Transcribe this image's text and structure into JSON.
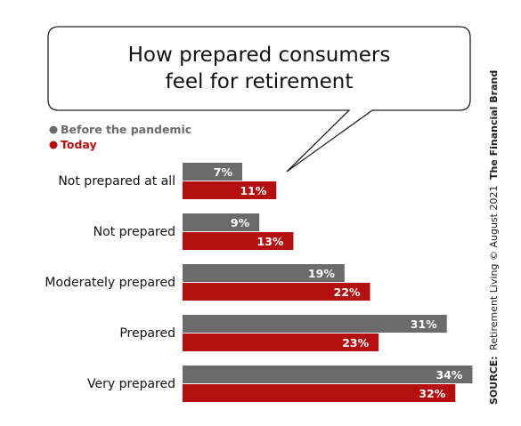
{
  "chart_data": {
    "type": "bar",
    "orientation": "horizontal",
    "title_lines": [
      "How prepared consumers",
      "feel for retirement"
    ],
    "categories": [
      "Not prepared at all",
      "Not prepared",
      "Moderately prepared",
      "Prepared",
      "Very prepared"
    ],
    "series": [
      {
        "name": "Before the pandemic",
        "color": "#6b6b6b",
        "values": [
          7,
          9,
          19,
          31,
          34
        ]
      },
      {
        "name": "Today",
        "color": "#b50e0e",
        "values": [
          11,
          13,
          22,
          23,
          32
        ]
      }
    ],
    "value_suffix": "%",
    "xlim": [
      0,
      35
    ],
    "grid": false,
    "legend_placement": "top-left"
  },
  "source": {
    "label": "SOURCE:",
    "text": "Retirement Living © August 2021",
    "brand": "The Financial Brand"
  }
}
